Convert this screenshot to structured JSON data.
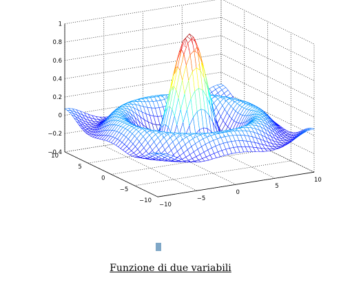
{
  "chart_data": {
    "type": "surface",
    "title": "",
    "xlabel": "",
    "ylabel": "",
    "zlabel": "",
    "function": "sin(sqrt(x^2+y^2))/sqrt(x^2+y^2)",
    "x_range": [
      -10,
      10
    ],
    "y_range": [
      -10,
      10
    ],
    "z_range": [
      -0.4,
      1
    ],
    "grid_points": 41,
    "colormap": "jet",
    "grid": true,
    "x_ticks": [
      "10",
      "5",
      "0",
      "−5",
      "−10"
    ],
    "y_ticks": [
      "−10",
      "−5",
      "0",
      "5",
      "10"
    ],
    "z_ticks": [
      "−0.4",
      "−0.2",
      "0",
      "0.2",
      "0.4",
      "0.6",
      "0.8",
      "1"
    ],
    "series": [
      {
        "values": [
          1.0,
          -0.217,
          0.128
        ]
      }
    ]
  },
  "caption": "Funzione di due variabili"
}
